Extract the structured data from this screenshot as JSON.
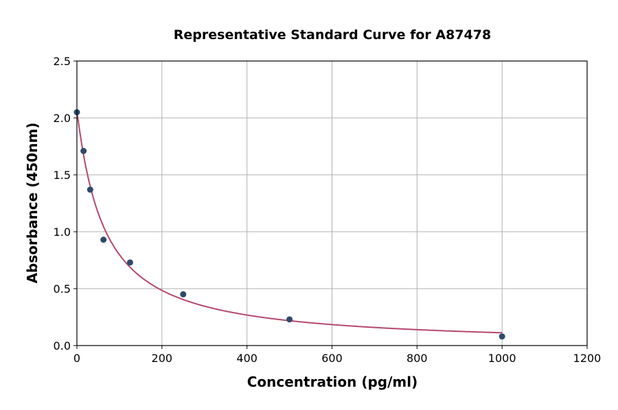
{
  "chart_data": {
    "type": "scatter",
    "title": "Representative Standard Curve for A87478",
    "xlabel": "Concentration (pg/ml)",
    "ylabel": "Absorbance (450nm)",
    "xlim": [
      0,
      1200
    ],
    "ylim": [
      0,
      2.5
    ],
    "xticks": [
      "0",
      "200",
      "400",
      "600",
      "800",
      "1000",
      "1200"
    ],
    "yticks": [
      "0.0",
      "0.5",
      "1.0",
      "1.5",
      "2.0",
      "2.5"
    ],
    "grid": true,
    "points": {
      "x": [
        0,
        15.6,
        31.25,
        62.5,
        125,
        250,
        500,
        1000
      ],
      "y": [
        2.05,
        1.71,
        1.37,
        0.93,
        0.73,
        0.45,
        0.23,
        0.08
      ]
    },
    "fit_curve": true,
    "colors": {
      "points": "#2e4a6b",
      "curve": "#b5476b",
      "grid": "#b0b0b0"
    }
  }
}
